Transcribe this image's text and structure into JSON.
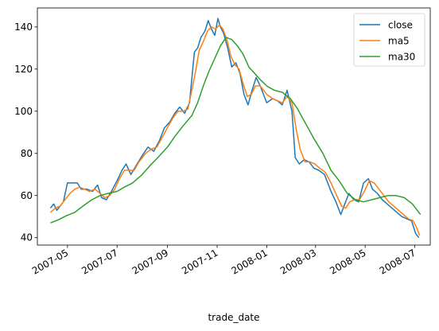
{
  "chart_data": {
    "type": "line",
    "title": "",
    "xlabel": "trade_date",
    "ylabel": "",
    "xlim": [
      "2007-03-25",
      "2008-07-20"
    ],
    "ylim": [
      36.5,
      149
    ],
    "grid": false,
    "legend_position": "top-right",
    "x_ticks": [
      "2007-05-01",
      "2007-07-01",
      "2007-09-01",
      "2007-11-01",
      "2008-01-01",
      "2008-03-01",
      "2008-05-01",
      "2008-07-01"
    ],
    "x_tick_labels": [
      "2007-05",
      "2007-07",
      "2007-09",
      "2007-11",
      "2008-01",
      "2008-03",
      "2008-05",
      "2008-07"
    ],
    "y_ticks": [
      40,
      60,
      80,
      100,
      120,
      140
    ],
    "y_tick_labels": [
      "40",
      "60",
      "80",
      "100",
      "120",
      "140"
    ],
    "series": [
      {
        "name": "close",
        "color": "#1f77b4",
        "points": [
          [
            "2007-04-10",
            54
          ],
          [
            "2007-04-14",
            56
          ],
          [
            "2007-04-18",
            53
          ],
          [
            "2007-04-22",
            55
          ],
          [
            "2007-04-26",
            57
          ],
          [
            "2007-05-01",
            66
          ],
          [
            "2007-05-07",
            66
          ],
          [
            "2007-05-13",
            66
          ],
          [
            "2007-05-18",
            63
          ],
          [
            "2007-05-25",
            63
          ],
          [
            "2007-06-01",
            62
          ],
          [
            "2007-06-07",
            65
          ],
          [
            "2007-06-12",
            59
          ],
          [
            "2007-06-18",
            58
          ],
          [
            "2007-06-24",
            62
          ],
          [
            "2007-07-01",
            67
          ],
          [
            "2007-07-07",
            72
          ],
          [
            "2007-07-12",
            75
          ],
          [
            "2007-07-18",
            70
          ],
          [
            "2007-07-24",
            74
          ],
          [
            "2007-08-01",
            79
          ],
          [
            "2007-08-08",
            83
          ],
          [
            "2007-08-15",
            81
          ],
          [
            "2007-08-22",
            86
          ],
          [
            "2007-08-28",
            92
          ],
          [
            "2007-09-04",
            95
          ],
          [
            "2007-09-10",
            99
          ],
          [
            "2007-09-16",
            102
          ],
          [
            "2007-09-22",
            99
          ],
          [
            "2007-09-28",
            104
          ],
          [
            "2007-10-04",
            128
          ],
          [
            "2007-10-08",
            130
          ],
          [
            "2007-10-12",
            135
          ],
          [
            "2007-10-17",
            138
          ],
          [
            "2007-10-21",
            143
          ],
          [
            "2007-10-25",
            139
          ],
          [
            "2007-10-29",
            136
          ],
          [
            "2007-11-02",
            144
          ],
          [
            "2007-11-05",
            140
          ],
          [
            "2007-11-09",
            137
          ],
          [
            "2007-11-14",
            130
          ],
          [
            "2007-11-19",
            121
          ],
          [
            "2007-11-24",
            123
          ],
          [
            "2007-11-29",
            118
          ],
          [
            "2007-12-04",
            108
          ],
          [
            "2007-12-09",
            103
          ],
          [
            "2007-12-14",
            110
          ],
          [
            "2007-12-19",
            116
          ],
          [
            "2007-12-24",
            112
          ],
          [
            "2008-01-01",
            104
          ],
          [
            "2008-01-08",
            106
          ],
          [
            "2008-01-14",
            105
          ],
          [
            "2008-01-20",
            103
          ],
          [
            "2008-01-26",
            110
          ],
          [
            "2008-02-01",
            100
          ],
          [
            "2008-02-05",
            78
          ],
          [
            "2008-02-10",
            75
          ],
          [
            "2008-02-16",
            77
          ],
          [
            "2008-02-22",
            76
          ],
          [
            "2008-02-28",
            73
          ],
          [
            "2008-03-05",
            72
          ],
          [
            "2008-03-12",
            70
          ],
          [
            "2008-03-20",
            62
          ],
          [
            "2008-03-26",
            57
          ],
          [
            "2008-04-01",
            51
          ],
          [
            "2008-04-06",
            56
          ],
          [
            "2008-04-11",
            61
          ],
          [
            "2008-04-17",
            58
          ],
          [
            "2008-04-23",
            57
          ],
          [
            "2008-04-29",
            66
          ],
          [
            "2008-05-05",
            68
          ],
          [
            "2008-05-10",
            63
          ],
          [
            "2008-05-16",
            61
          ],
          [
            "2008-05-22",
            58
          ],
          [
            "2008-05-28",
            56
          ],
          [
            "2008-06-03",
            54
          ],
          [
            "2008-06-09",
            52
          ],
          [
            "2008-06-15",
            50
          ],
          [
            "2008-06-21",
            49
          ],
          [
            "2008-06-27",
            48
          ],
          [
            "2008-07-02",
            42
          ],
          [
            "2008-07-06",
            40
          ]
        ]
      },
      {
        "name": "ma5",
        "color": "#ff7f0e",
        "points": [
          [
            "2007-04-10",
            52
          ],
          [
            "2007-04-16",
            54
          ],
          [
            "2007-04-22",
            55
          ],
          [
            "2007-04-28",
            58
          ],
          [
            "2007-05-04",
            61
          ],
          [
            "2007-05-10",
            63
          ],
          [
            "2007-05-16",
            64
          ],
          [
            "2007-05-22",
            63
          ],
          [
            "2007-05-28",
            62
          ],
          [
            "2007-06-04",
            63
          ],
          [
            "2007-06-10",
            61
          ],
          [
            "2007-06-16",
            59
          ],
          [
            "2007-06-22",
            60
          ],
          [
            "2007-06-28",
            63
          ],
          [
            "2007-07-04",
            68
          ],
          [
            "2007-07-10",
            72
          ],
          [
            "2007-07-16",
            72
          ],
          [
            "2007-07-22",
            72
          ],
          [
            "2007-07-28",
            76
          ],
          [
            "2007-08-05",
            80
          ],
          [
            "2007-08-12",
            82
          ],
          [
            "2007-08-19",
            83
          ],
          [
            "2007-08-26",
            88
          ],
          [
            "2007-09-02",
            93
          ],
          [
            "2007-09-08",
            97
          ],
          [
            "2007-09-14",
            100
          ],
          [
            "2007-09-20",
            100
          ],
          [
            "2007-09-26",
            101
          ],
          [
            "2007-10-02",
            112
          ],
          [
            "2007-10-06",
            120
          ],
          [
            "2007-10-10",
            129
          ],
          [
            "2007-10-15",
            133
          ],
          [
            "2007-10-20",
            138
          ],
          [
            "2007-10-25",
            140
          ],
          [
            "2007-10-30",
            139
          ],
          [
            "2007-11-04",
            141
          ],
          [
            "2007-11-08",
            139
          ],
          [
            "2007-11-13",
            134
          ],
          [
            "2007-11-18",
            126
          ],
          [
            "2007-11-23",
            122
          ],
          [
            "2007-11-28",
            120
          ],
          [
            "2007-12-03",
            113
          ],
          [
            "2007-12-08",
            107
          ],
          [
            "2007-12-13",
            108
          ],
          [
            "2007-12-18",
            112
          ],
          [
            "2007-12-24",
            112
          ],
          [
            "2008-01-01",
            108
          ],
          [
            "2008-01-08",
            106
          ],
          [
            "2008-01-14",
            105
          ],
          [
            "2008-01-20",
            104
          ],
          [
            "2008-01-26",
            107
          ],
          [
            "2008-02-01",
            104
          ],
          [
            "2008-02-06",
            92
          ],
          [
            "2008-02-11",
            82
          ],
          [
            "2008-02-17",
            76
          ],
          [
            "2008-02-23",
            76
          ],
          [
            "2008-02-29",
            75
          ],
          [
            "2008-03-06",
            73
          ],
          [
            "2008-03-13",
            71
          ],
          [
            "2008-03-20",
            66
          ],
          [
            "2008-03-27",
            60
          ],
          [
            "2008-04-02",
            55
          ],
          [
            "2008-04-07",
            54
          ],
          [
            "2008-04-12",
            57
          ],
          [
            "2008-04-18",
            58
          ],
          [
            "2008-04-24",
            58
          ],
          [
            "2008-04-30",
            62
          ],
          [
            "2008-05-06",
            67
          ],
          [
            "2008-05-12",
            66
          ],
          [
            "2008-05-18",
            63
          ],
          [
            "2008-05-24",
            60
          ],
          [
            "2008-05-30",
            57
          ],
          [
            "2008-06-05",
            55
          ],
          [
            "2008-06-11",
            53
          ],
          [
            "2008-06-17",
            51
          ],
          [
            "2008-06-23",
            49
          ],
          [
            "2008-06-29",
            48
          ],
          [
            "2008-07-03",
            45
          ],
          [
            "2008-07-07",
            41
          ]
        ]
      },
      {
        "name": "ma30",
        "color": "#2ca02c",
        "points": [
          [
            "2007-04-10",
            47
          ],
          [
            "2007-04-20",
            48.5
          ],
          [
            "2007-04-30",
            50.5
          ],
          [
            "2007-05-10",
            52
          ],
          [
            "2007-05-20",
            55
          ],
          [
            "2007-05-31",
            58
          ],
          [
            "2007-06-10",
            60
          ],
          [
            "2007-06-20",
            61
          ],
          [
            "2007-07-01",
            62
          ],
          [
            "2007-07-10",
            64
          ],
          [
            "2007-07-20",
            66
          ],
          [
            "2007-08-01",
            70
          ],
          [
            "2007-08-10",
            74
          ],
          [
            "2007-08-20",
            78
          ],
          [
            "2007-09-01",
            83
          ],
          [
            "2007-09-10",
            88
          ],
          [
            "2007-09-20",
            93
          ],
          [
            "2007-10-01",
            98
          ],
          [
            "2007-10-08",
            104
          ],
          [
            "2007-10-15",
            112
          ],
          [
            "2007-10-22",
            119
          ],
          [
            "2007-10-29",
            125
          ],
          [
            "2007-11-05",
            131
          ],
          [
            "2007-11-12",
            135
          ],
          [
            "2007-11-19",
            134
          ],
          [
            "2007-11-26",
            131
          ],
          [
            "2007-12-03",
            127
          ],
          [
            "2007-12-10",
            121
          ],
          [
            "2007-12-17",
            118
          ],
          [
            "2007-12-24",
            115
          ],
          [
            "2008-01-01",
            112
          ],
          [
            "2008-01-10",
            110
          ],
          [
            "2008-01-20",
            109
          ],
          [
            "2008-01-30",
            106
          ],
          [
            "2008-02-08",
            101
          ],
          [
            "2008-02-18",
            94
          ],
          [
            "2008-02-28",
            87
          ],
          [
            "2008-03-10",
            80
          ],
          [
            "2008-03-20",
            72
          ],
          [
            "2008-03-30",
            67
          ],
          [
            "2008-04-09",
            61
          ],
          [
            "2008-04-19",
            58
          ],
          [
            "2008-04-29",
            57
          ],
          [
            "2008-05-09",
            58
          ],
          [
            "2008-05-19",
            59
          ],
          [
            "2008-05-29",
            60
          ],
          [
            "2008-06-08",
            60
          ],
          [
            "2008-06-18",
            59
          ],
          [
            "2008-06-28",
            56
          ],
          [
            "2008-07-08",
            51
          ]
        ]
      }
    ]
  }
}
